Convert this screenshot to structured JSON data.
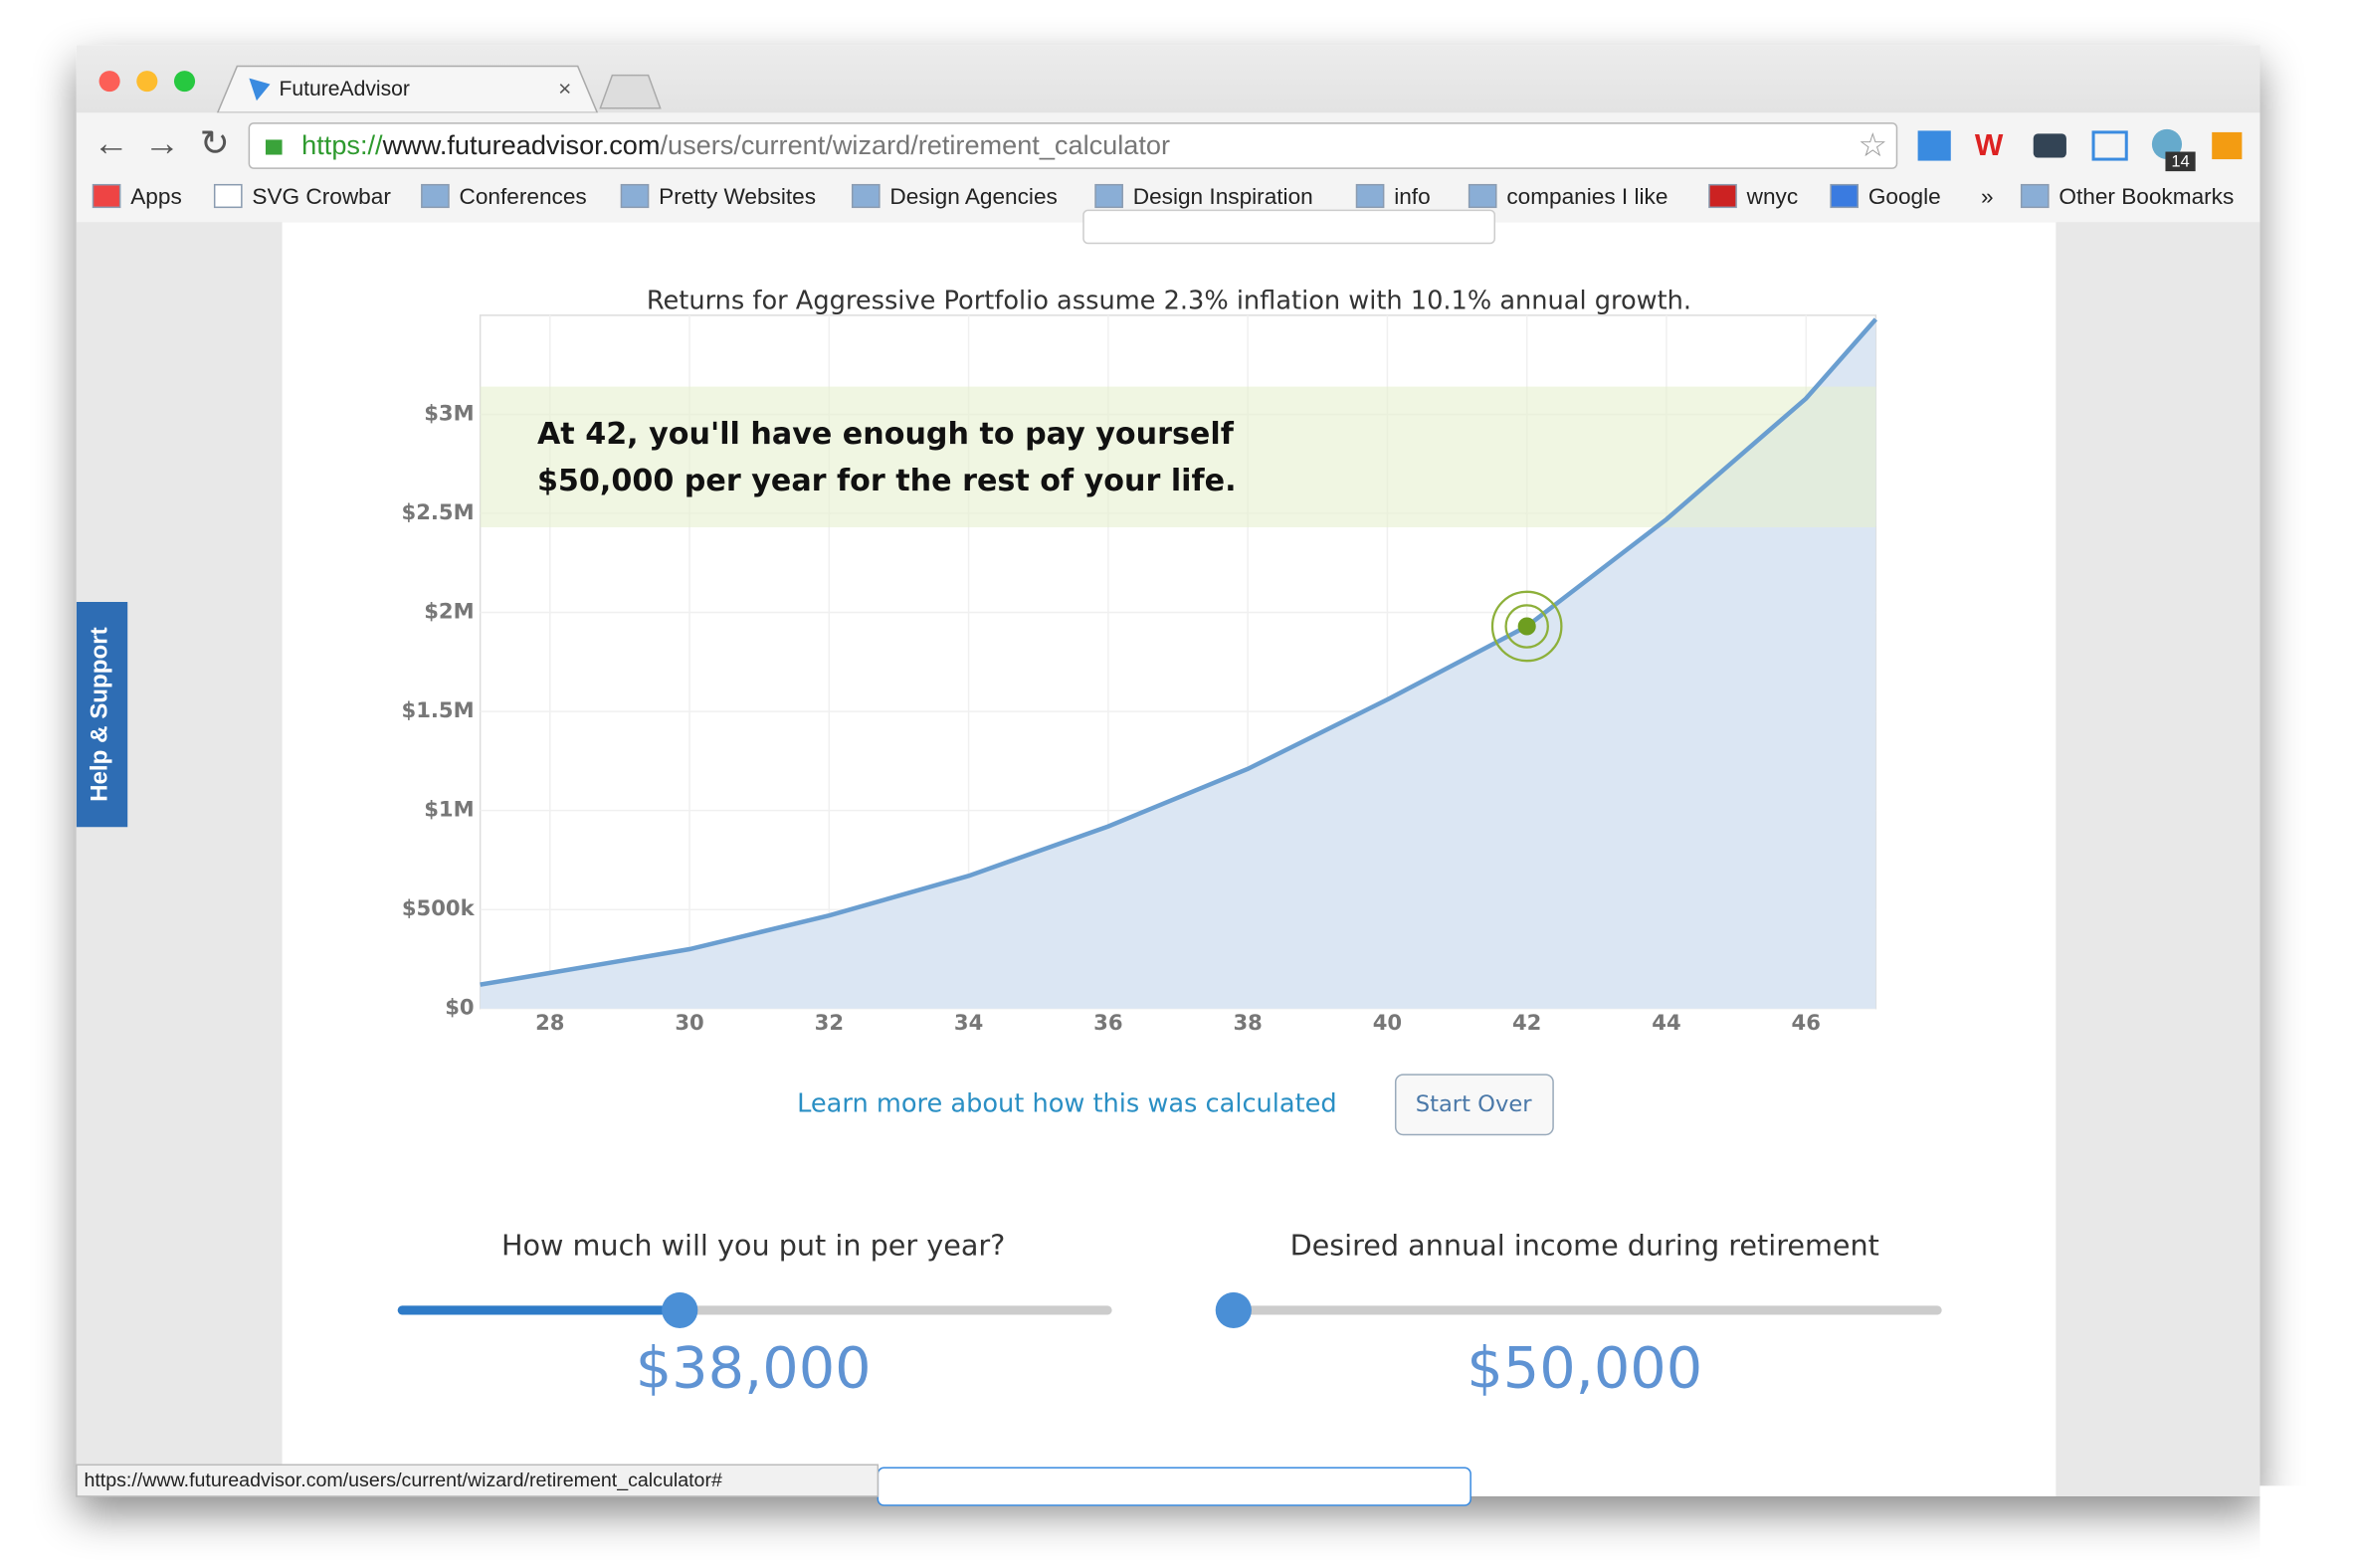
{
  "browser": {
    "tab_title": "FutureAdvisor",
    "url": {
      "scheme": "https://",
      "host": "www.futureadvisor.com",
      "path": "/users/current/wizard/retirement_calculator"
    },
    "bookmarks": [
      "Apps",
      "SVG Crowbar",
      "Conferences",
      "Pretty Websites",
      "Design Agencies",
      "Design Inspiration",
      "info",
      "companies I like",
      "wnyc",
      "Google",
      "»",
      "Other Bookmarks"
    ],
    "extension_badge": "14",
    "status_url": "https://www.futureadvisor.com/users/current/wizard/retirement_calculator#"
  },
  "page": {
    "help_tab": "Help & Support",
    "learn_more": "Learn more about how this was calculated",
    "start_over": "Start Over",
    "sliders": [
      {
        "label": "How much will you put in per year?",
        "value": "$38,000"
      },
      {
        "label": "Desired annual income during retirement",
        "value": "$50,000"
      }
    ]
  },
  "chart_data": {
    "type": "area",
    "subtitle": "Returns for Aggressive Portfolio assume 2.3% inflation with 10.1% annual growth.",
    "annotation": [
      "At 42, you'll have enough to pay yourself",
      "$50,000 per year for the rest of your life."
    ],
    "x": [
      27,
      28,
      30,
      32,
      34,
      36,
      38,
      40,
      42,
      44,
      46,
      47
    ],
    "series": [
      {
        "color": "#6a9ed0",
        "values": [
          121000,
          180000,
          300000,
          470000,
          670000,
          920000,
          1210000,
          1560000,
          1930000,
          2470000,
          3080000,
          3480000
        ]
      }
    ],
    "goal_band": [
      2430000,
      3140000
    ],
    "highlight": {
      "x": 42,
      "y": 1930000
    },
    "xlim": [
      27,
      47
    ],
    "xticks": [
      28,
      30,
      32,
      34,
      36,
      38,
      40,
      42,
      44,
      46
    ],
    "ylim": [
      0,
      3500000
    ],
    "yticks": [
      {
        "value": 0,
        "label": "$0"
      },
      {
        "value": 500000,
        "label": "$500k"
      },
      {
        "value": 1000000,
        "label": "$1M"
      },
      {
        "value": 1500000,
        "label": "$1.5M"
      },
      {
        "value": 2000000,
        "label": "$2M"
      },
      {
        "value": 2500000,
        "label": "$2.5M"
      },
      {
        "value": 3000000,
        "label": "$3M"
      }
    ],
    "grid": true
  }
}
